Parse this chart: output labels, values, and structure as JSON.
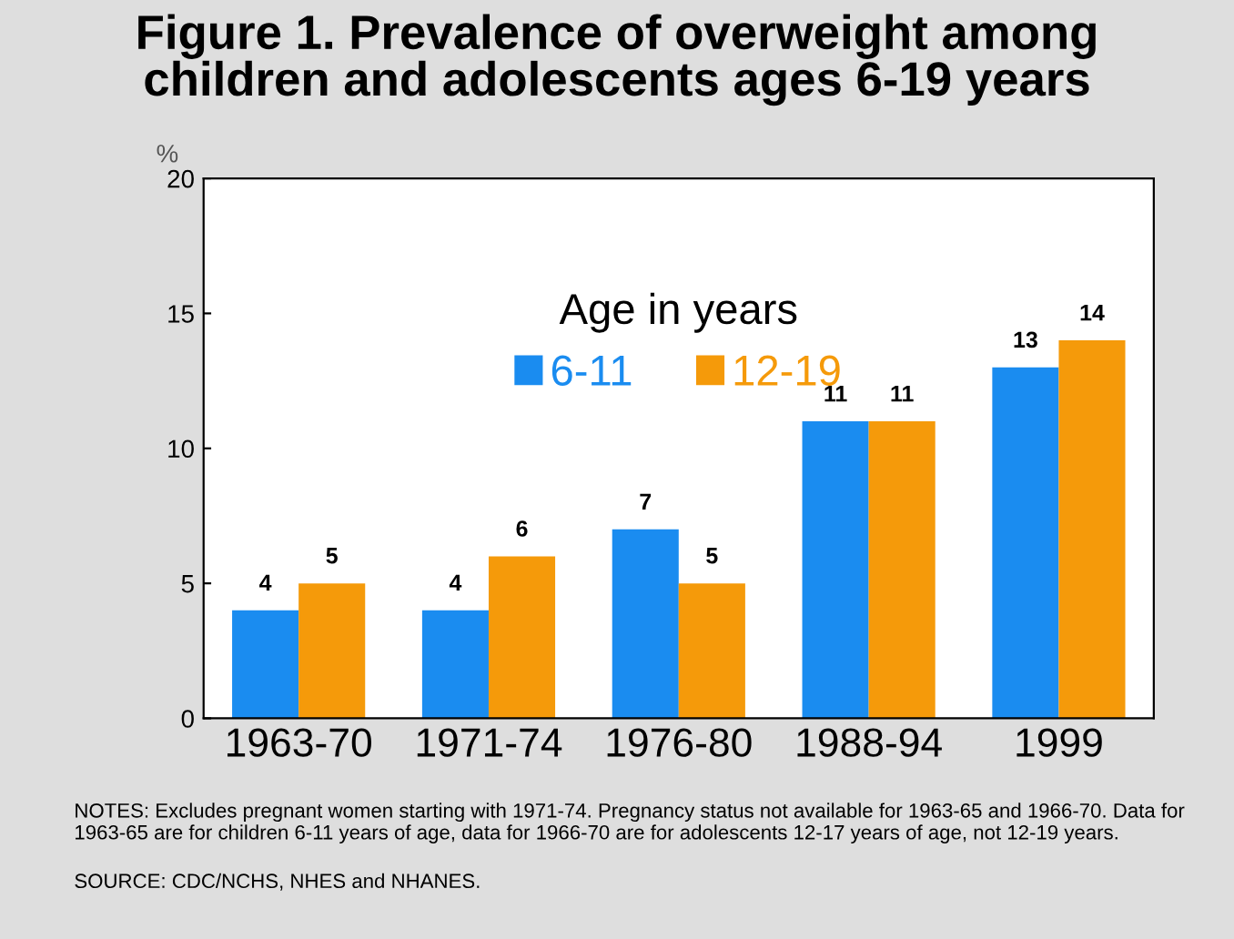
{
  "chart_data": {
    "type": "bar",
    "title": "Figure 1. Prevalence of overweight among\nchildren and adolescents ages 6-19 years",
    "ylabel": "%",
    "legend_title": "Age in years",
    "categories": [
      "1963-70",
      "1971-74",
      "1976-80",
      "1988-94",
      "1999"
    ],
    "series": [
      {
        "name": "6-11",
        "color": "#1a8cf0",
        "values": [
          4,
          4,
          7,
          11,
          13
        ]
      },
      {
        "name": "12-19",
        "color": "#f59a0a",
        "values": [
          5,
          6,
          5,
          11,
          14
        ]
      }
    ],
    "ylim": [
      0,
      20
    ],
    "yticks": [
      0,
      5,
      10,
      15,
      20
    ],
    "data_labels": true,
    "grid": false,
    "legend": "top",
    "annotations": [
      "NOTES: Excludes pregnant women starting with 1971-74. Pregnancy status not available for 1963-65 and 1966-70. Data for 1963-65 are for children 6-11 years of age, data for 1966-70 are for adolescents 12-17 years of age, not 12-19 years.",
      "SOURCE: CDC/NCHS, NHES and NHANES."
    ]
  }
}
